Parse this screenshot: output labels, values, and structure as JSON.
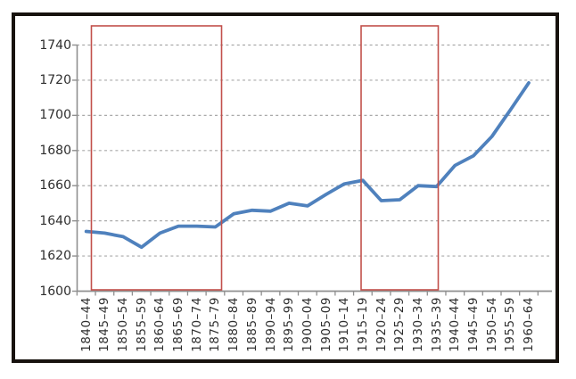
{
  "chart_data": {
    "type": "line",
    "title": "",
    "xlabel": "",
    "ylabel": "",
    "categories": [
      "1840–44",
      "1845–49",
      "1850–54",
      "1855–59",
      "1860–64",
      "1865–69",
      "1870–74",
      "1875–79",
      "1880–84",
      "1885–89",
      "1890–94",
      "1895–99",
      "1900–04",
      "1905–09",
      "1910–14",
      "1915–19",
      "1920–24",
      "1925–29",
      "1930–34",
      "1935–39",
      "1940–44",
      "1945–49",
      "1950–54",
      "1955–59",
      "1960–64"
    ],
    "series": [
      {
        "name": "value",
        "values": [
          1634,
          1633,
          1631,
          1625,
          1633,
          1637,
          1637,
          1636.5,
          1644,
          1646,
          1645.5,
          1650,
          1648.5,
          1655,
          1661,
          1663,
          1651.5,
          1652,
          1660,
          1659.5,
          1671.5,
          1677,
          1688,
          1703,
          1718.5
        ]
      }
    ],
    "y_ticks": [
      1600,
      1620,
      1640,
      1660,
      1680,
      1700,
      1720,
      1740
    ],
    "ylim": [
      1600,
      1750
    ],
    "grid": "horizontal-dashed",
    "legend": "none",
    "highlight_boxes": [
      {
        "from": "1845–49",
        "to": "1875–79"
      },
      {
        "from": "1915–19",
        "to": "1935–39"
      }
    ]
  },
  "colors": {
    "line": "#4F81BD",
    "highlight_border": "#C2504B",
    "gridline": "#a9a9a9",
    "axis": "#8f8f8f",
    "text": "#2e2e2e",
    "frame_border": "#17120e",
    "background": "#ffffff"
  }
}
